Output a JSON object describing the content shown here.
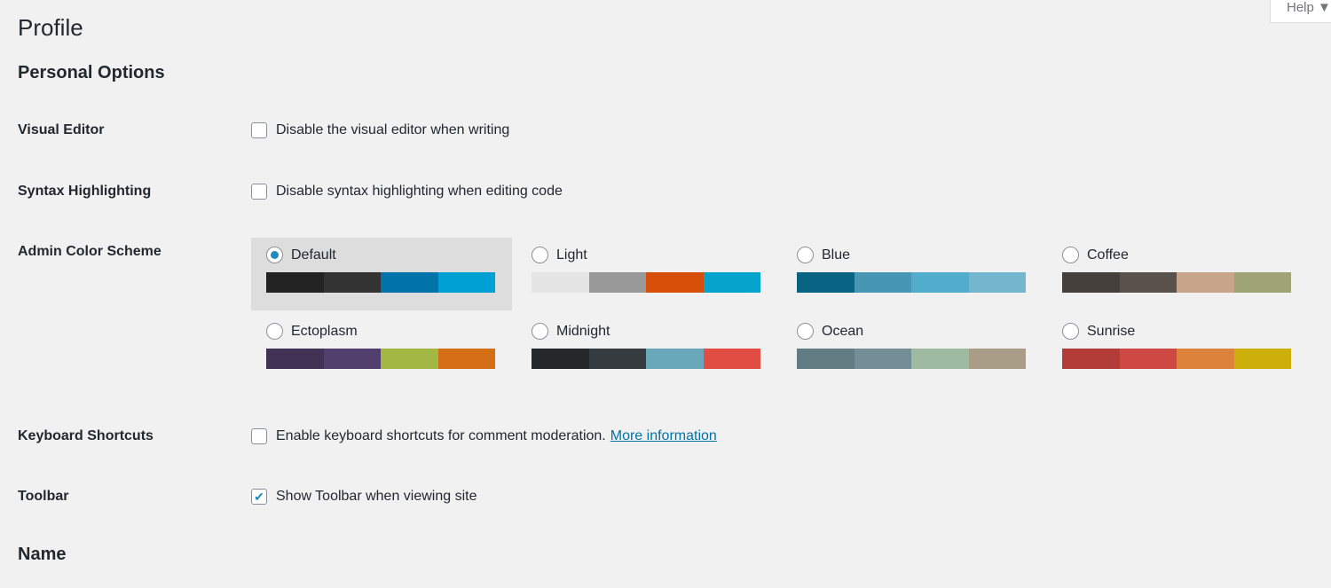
{
  "help": {
    "label": "Help ▼"
  },
  "title": "Profile",
  "section_personal": "Personal Options",
  "section_name": "Name",
  "visual_editor": {
    "label": "Visual Editor",
    "option": "Disable the visual editor when writing",
    "checked": false
  },
  "syntax": {
    "label": "Syntax Highlighting",
    "option": "Disable syntax highlighting when editing code",
    "checked": false
  },
  "color_scheme": {
    "label": "Admin Color Scheme",
    "selected": "Default",
    "schemes": [
      {
        "name": "Default",
        "colors": [
          "#222222",
          "#333333",
          "#0073aa",
          "#00a0d2"
        ]
      },
      {
        "name": "Light",
        "colors": [
          "#e5e5e5",
          "#999999",
          "#d64e07",
          "#04a4cc"
        ]
      },
      {
        "name": "Blue",
        "colors": [
          "#096484",
          "#4796b3",
          "#52accc",
          "#74b6ce"
        ]
      },
      {
        "name": "Coffee",
        "colors": [
          "#46403c",
          "#59524c",
          "#c7a589",
          "#9ea476"
        ]
      },
      {
        "name": "Ectoplasm",
        "colors": [
          "#413256",
          "#523f6d",
          "#a3b745",
          "#d46f15"
        ]
      },
      {
        "name": "Midnight",
        "colors": [
          "#25282b",
          "#363b3f",
          "#69a8bb",
          "#e14d43"
        ]
      },
      {
        "name": "Ocean",
        "colors": [
          "#627c83",
          "#738e96",
          "#9ebaa0",
          "#aa9d88"
        ]
      },
      {
        "name": "Sunrise",
        "colors": [
          "#b43c38",
          "#cf4944",
          "#dd823b",
          "#ccaf0b"
        ]
      }
    ]
  },
  "keyboard": {
    "label": "Keyboard Shortcuts",
    "option": "Enable keyboard shortcuts for comment moderation.",
    "link": "More information",
    "checked": false
  },
  "toolbar": {
    "label": "Toolbar",
    "option": "Show Toolbar when viewing site",
    "checked": true
  }
}
